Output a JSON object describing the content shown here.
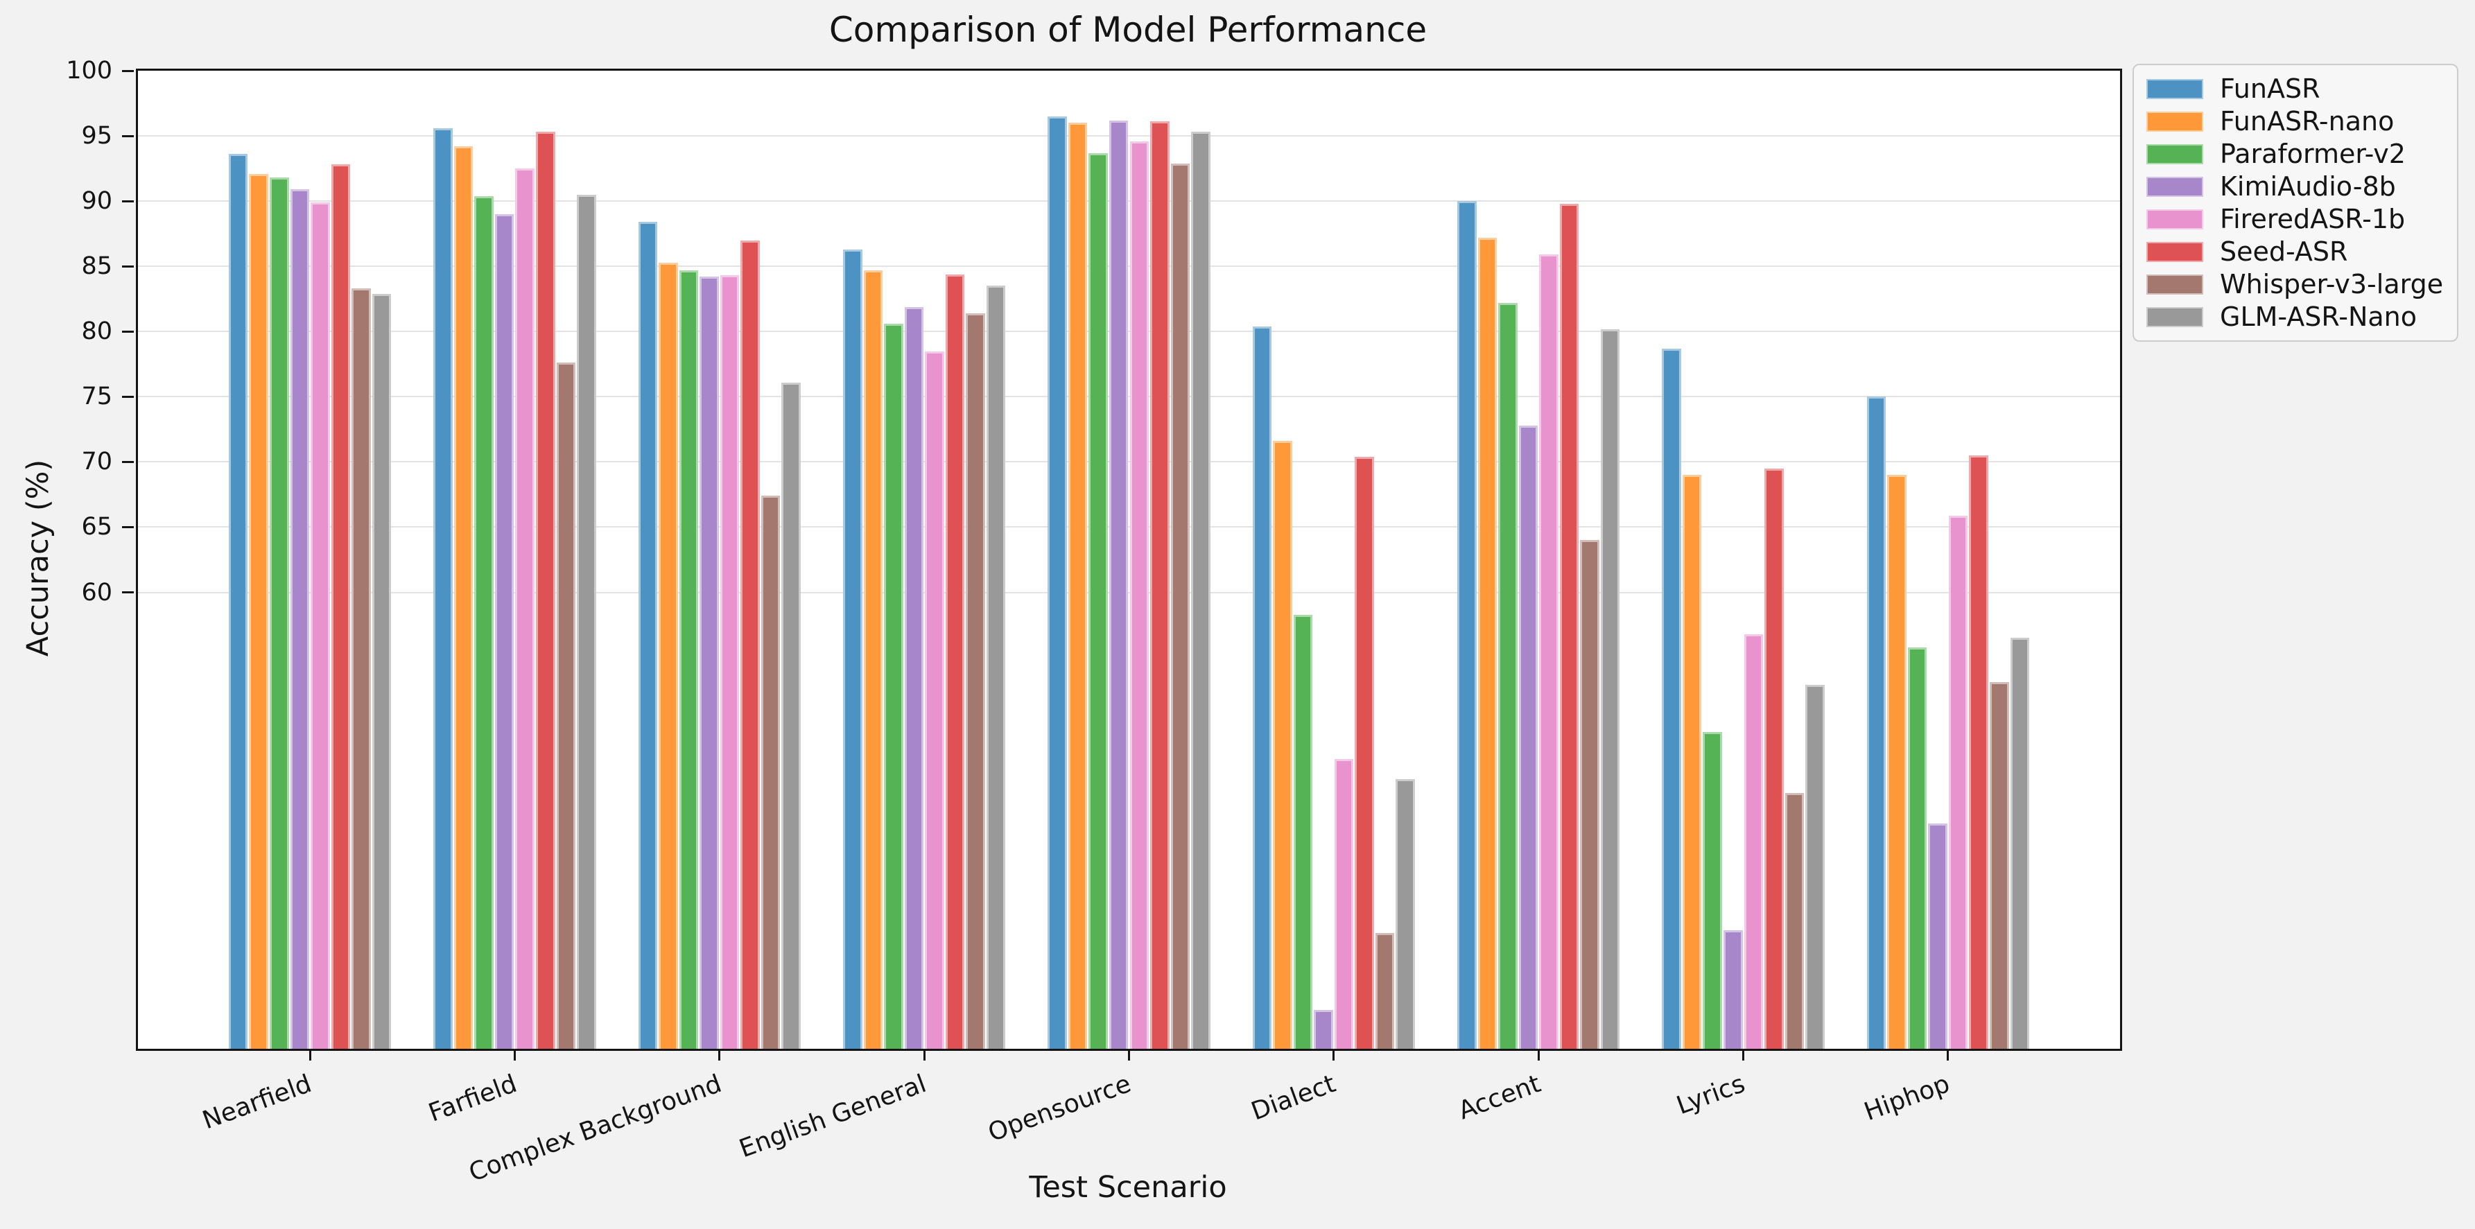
{
  "title": "Comparison of Model Performance",
  "chart_data": {
    "type": "bar",
    "title": "Comparison of Model Performance",
    "xlabel": "Test Scenario",
    "ylabel": "Accuracy (%)",
    "categories": [
      "Nearfield",
      "Farfield",
      "Complex Background",
      "English General",
      "Opensource",
      "Dialect",
      "Accent",
      "Lyrics",
      "Hiphop"
    ],
    "series": [
      {
        "name": "FunASR",
        "color": "#4C92C3",
        "edge_color": "#A6C9E1",
        "values": [
          93.6,
          95.6,
          88.4,
          86.3,
          96.5,
          80.4,
          90.0,
          78.7,
          75.0
        ]
      },
      {
        "name": "FunASR-nano",
        "color": "#FF9838",
        "edge_color": "#FFCC9C",
        "values": [
          92.1,
          94.2,
          85.3,
          84.7,
          96.0,
          71.6,
          87.2,
          69.0,
          69.0
        ]
      },
      {
        "name": "Paraformer-v2",
        "color": "#55B255",
        "edge_color": "#AAD9AA",
        "values": [
          91.8,
          90.4,
          84.7,
          80.6,
          93.7,
          58.3,
          82.2,
          49.3,
          55.8
        ]
      },
      {
        "name": "KimiAudio-8b",
        "color": "#A886CA",
        "edge_color": "#D4C3E5",
        "values": [
          90.9,
          89.0,
          84.2,
          81.9,
          96.2,
          28.0,
          72.8,
          34.1,
          42.3
        ]
      },
      {
        "name": "FireredASR-1b",
        "color": "#E892CE",
        "edge_color": "#F4C9E7",
        "values": [
          89.9,
          92.5,
          84.3,
          78.5,
          94.6,
          47.2,
          85.9,
          56.8,
          65.9
        ]
      },
      {
        "name": "Seed-ASR",
        "color": "#DE5254",
        "edge_color": "#EFA9AA",
        "values": [
          92.8,
          95.3,
          87.0,
          84.4,
          96.1,
          70.4,
          89.8,
          69.5,
          70.5
        ]
      },
      {
        "name": "Whisper-v3-large",
        "color": "#A3786F",
        "edge_color": "#D1BCB7",
        "values": [
          83.3,
          77.6,
          67.4,
          81.4,
          92.9,
          33.9,
          64.0,
          44.6,
          53.1
        ]
      },
      {
        "name": "GLM-ASR-Nano",
        "color": "#999999",
        "edge_color": "#CCCCCC",
        "values": [
          82.9,
          90.5,
          76.1,
          83.5,
          95.3,
          45.7,
          80.2,
          52.9,
          56.5
        ]
      }
    ],
    "ylim": [
      25,
      100
    ],
    "yticks": [
      60,
      65,
      70,
      75,
      80,
      85,
      90,
      95,
      100
    ],
    "xlim": [
      -0.84,
      8.84
    ],
    "group_width": 0.8,
    "grid": "horizontal",
    "legend_position": "outside-top-right",
    "x_tick_label_rotation_deg": 20
  },
  "style": {
    "figure_bg": "#f2f2f2",
    "axes_bg": "#ffffff",
    "spine_color": "#141414",
    "grid_color": "#e3e3e3",
    "text_color": "#141414",
    "legend_bg": "#f7f7f7",
    "legend_border": "#cccccc"
  }
}
